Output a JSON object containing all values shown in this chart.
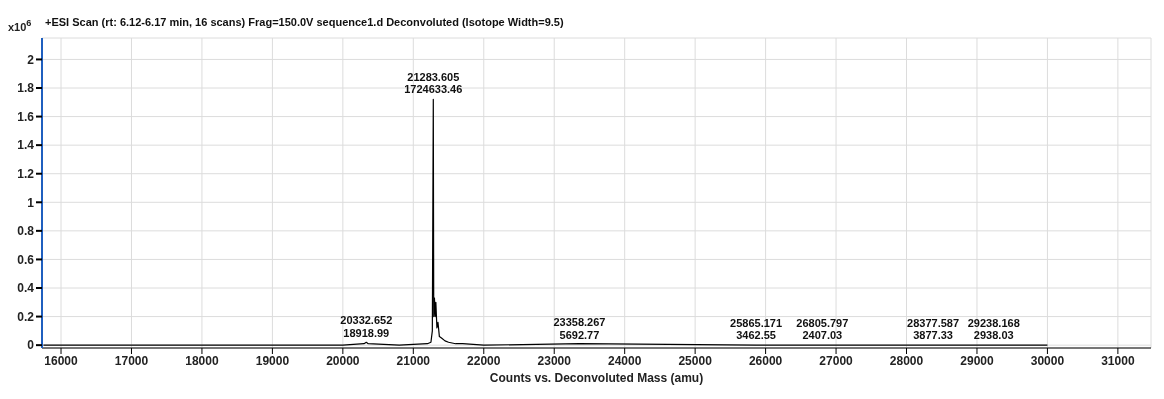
{
  "chart_data": {
    "type": "line",
    "title": "+ESI Scan (rt: 6.12-6.17 min, 16 scans) Frag=150.0V sequence1.d Deconvoluted (Isotope Width=9.5)",
    "xlabel": "Counts vs. Deconvoluted Mass (amu)",
    "ylabel": "x10$^{6}$",
    "x": [
      15750,
      17000,
      18000,
      19000,
      20000,
      20300,
      20332.652,
      20360,
      20800,
      21200,
      21250,
      21270,
      21283.605,
      21290,
      21300,
      21310,
      21320,
      21335,
      21350,
      21370,
      21400,
      21450,
      21500,
      21600,
      21700,
      22000,
      23358.267,
      25865.171,
      26805.797,
      28377.587,
      29238.168,
      30000
    ],
    "series": [
      {
        "color": "#000000",
        "values": [
          0,
          0,
          0,
          0,
          0,
          0.01,
          0.02,
          0.01,
          0,
          0.01,
          0.02,
          0.1,
          1.72,
          0.2,
          0.33,
          0.2,
          0.3,
          0.12,
          0.16,
          0.06,
          0.05,
          0.03,
          0.02,
          0.01,
          0.01,
          0,
          0.01,
          0,
          0,
          0,
          0,
          0
        ]
      }
    ],
    "xlim": [
      15730,
      31470
    ],
    "xticks": [
      16000,
      17000,
      18000,
      19000,
      20000,
      21000,
      22000,
      23000,
      24000,
      25000,
      26000,
      27000,
      28000,
      29000,
      30000,
      31000
    ],
    "ylim": [
      -0.02,
      2.15
    ],
    "yticks": [
      0,
      0.2,
      0.4,
      0.6,
      0.8,
      1,
      1.2,
      1.4,
      1.6,
      1.8,
      2
    ],
    "grid": true,
    "legend": false,
    "marker": "none",
    "line_style": "solid",
    "annotations": [
      {
        "text": "20332.652\n18918.99",
        "x": 20332.652,
        "y": 0.01891899
      },
      {
        "text": "21283.605\n1724633.46",
        "x": 21283.605,
        "y": 1.72463346
      },
      {
        "text": "23358.267\n5692.77",
        "x": 23358.267,
        "y": 0.00569277
      },
      {
        "text": "25865.171\n3462.55",
        "x": 25865.171,
        "y": 0.00346255
      },
      {
        "text": "26805.797\n2407.03",
        "x": 26805.797,
        "y": 0.00240703
      },
      {
        "text": "28377.587\n3877.33",
        "x": 28377.587,
        "y": 0.00387733
      },
      {
        "text": "29238.168\n2938.03",
        "x": 29238.168,
        "y": 0.00293803
      }
    ]
  }
}
